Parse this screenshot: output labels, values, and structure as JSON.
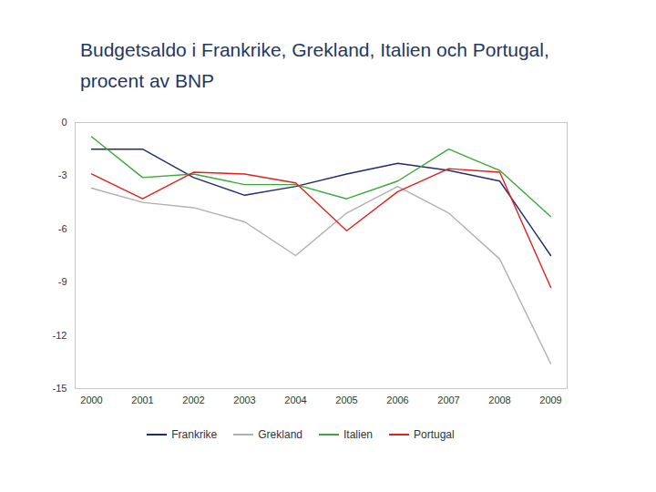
{
  "chart_data": {
    "type": "line",
    "title": "Budgetsaldo i Frankrike, Grekland, Italien och Portugal, procent av BNP",
    "categories": [
      "2000",
      "2001",
      "2002",
      "2003",
      "2004",
      "2005",
      "2006",
      "2007",
      "2008",
      "2009"
    ],
    "series": [
      {
        "name": "Frankrike",
        "color": "#1f2d6e",
        "values": [
          -1.5,
          -1.5,
          -3.1,
          -4.1,
          -3.6,
          -2.9,
          -2.3,
          -2.7,
          -3.3,
          -7.5
        ]
      },
      {
        "name": "Grekland",
        "color": "#b0b0b0",
        "values": [
          -3.7,
          -4.5,
          -4.8,
          -5.6,
          -7.5,
          -5.1,
          -3.6,
          -5.1,
          -7.7,
          -13.6
        ]
      },
      {
        "name": "Italien",
        "color": "#3aa83a",
        "values": [
          -0.8,
          -3.1,
          -2.9,
          -3.5,
          -3.5,
          -4.3,
          -3.3,
          -1.5,
          -2.7,
          -5.3
        ]
      },
      {
        "name": "Portugal",
        "color": "#e3201c",
        "values": [
          -2.9,
          -4.3,
          -2.8,
          -2.9,
          -3.4,
          -6.1,
          -3.9,
          -2.6,
          -2.8,
          -9.3
        ]
      }
    ],
    "ylim": [
      -15,
      0
    ],
    "yticks": [
      0,
      -3,
      -6,
      -9,
      -12,
      -15
    ],
    "grid": false,
    "legend": "bottom"
  }
}
